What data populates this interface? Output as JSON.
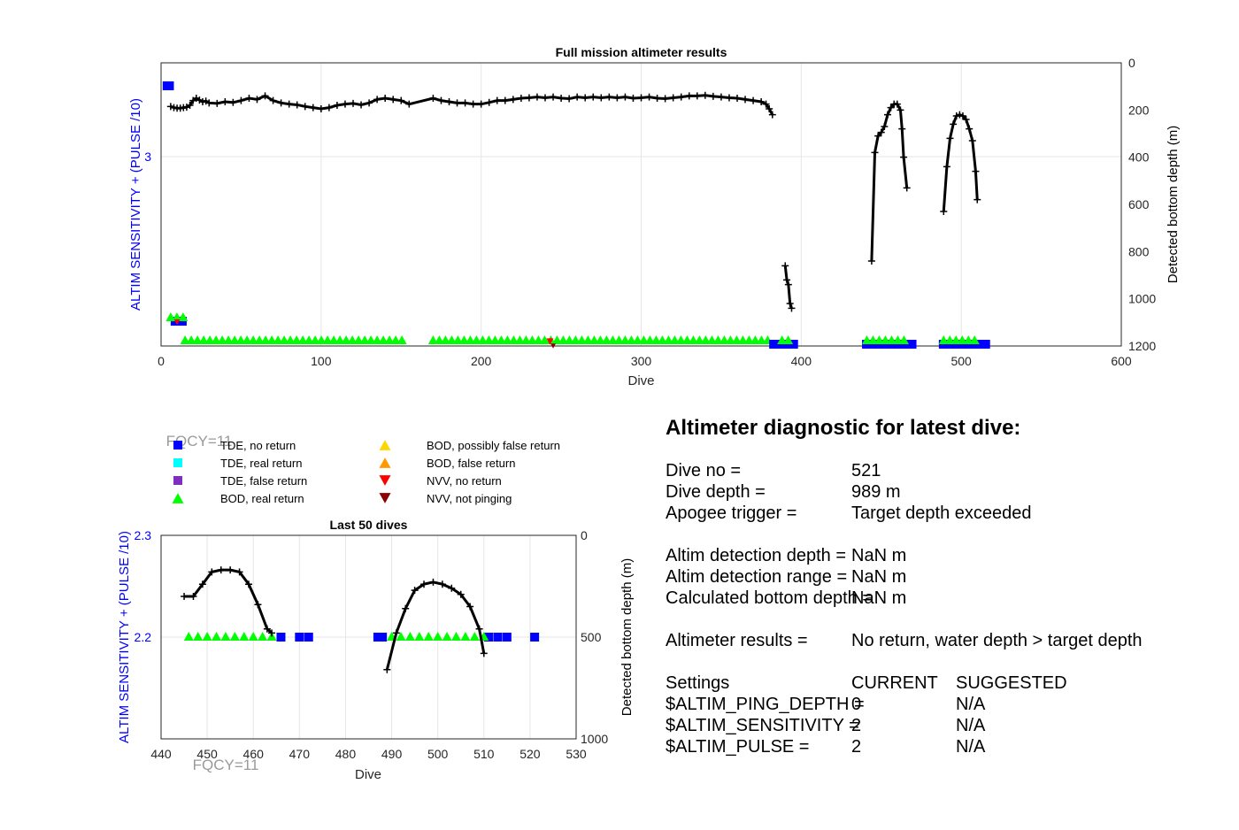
{
  "colors": {
    "tde_no_return": "#0000ff",
    "tde_real_return": "#00ffff",
    "tde_false_return": "#7e2fbe",
    "bod_real_return": "#00ff00",
    "bod_possibly_false": "#ffd700",
    "bod_false_return": "#ff9900",
    "nvv_no_return": "#ff0000",
    "nvv_not_pinging": "#8b0000",
    "depth_line": "#000000",
    "left_axis": "#0000ff",
    "grid": "#e6e6e6"
  },
  "chart_data": [
    {
      "type": "scatter",
      "title": "Full mission altimeter results",
      "xlabel": "Dive",
      "ylabel_left": "ALTIM SENSITIVITY + (PULSE /10)",
      "ylabel_right": "Detected bottom depth (m)",
      "xlim": [
        0,
        600
      ],
      "x_ticks": [
        0,
        100,
        200,
        300,
        400,
        500,
        600
      ],
      "y_left_ticks": [
        3
      ],
      "y_right_ticks": [
        0,
        200,
        400,
        600,
        800,
        1000,
        1200
      ],
      "y_right_lim": [
        0,
        1200
      ],
      "grid": true,
      "segments": [
        {
          "series": "tde_no_return",
          "start": 1,
          "end": 8,
          "level": "top"
        },
        {
          "series": "tde_no_return",
          "start": 6,
          "end": 16,
          "level": "mid"
        },
        {
          "series": "bod_real_return",
          "start": 6,
          "end": 16,
          "level": "mid"
        },
        {
          "series": "bod_real_return",
          "start": 15,
          "end": 152,
          "level": "bottom"
        },
        {
          "series": "bod_real_return",
          "start": 170,
          "end": 380,
          "level": "bottom"
        },
        {
          "series": "tde_no_return",
          "start": 380,
          "end": 398,
          "level": "bottom"
        },
        {
          "series": "bod_real_return",
          "start": 388,
          "end": 392,
          "level": "bottom"
        },
        {
          "series": "tde_no_return",
          "start": 438,
          "end": 472,
          "level": "bottom"
        },
        {
          "series": "bod_real_return",
          "start": 441,
          "end": 465,
          "level": "bottom"
        },
        {
          "series": "tde_no_return",
          "start": 486,
          "end": 518,
          "level": "bottom"
        },
        {
          "series": "bod_real_return",
          "start": 489,
          "end": 510,
          "level": "bottom"
        }
      ],
      "depth_lines": [
        {
          "x": [
            6,
            8,
            10,
            12,
            14,
            16,
            18,
            20,
            22,
            24,
            26,
            28,
            30,
            35,
            40,
            45,
            50,
            55,
            60,
            65,
            70,
            75,
            80,
            85,
            90,
            95,
            100,
            105,
            110,
            115,
            120,
            125,
            130,
            135,
            140,
            145,
            150,
            155,
            170,
            175,
            180,
            185,
            190,
            195,
            200,
            205,
            210,
            215,
            220,
            225,
            230,
            235,
            240,
            245,
            250,
            255,
            260,
            265,
            270,
            275,
            280,
            285,
            290,
            295,
            300,
            305,
            310,
            315,
            320,
            325,
            330,
            335,
            340,
            345,
            350,
            355,
            360,
            365,
            370,
            375,
            378,
            380,
            382
          ],
          "y": [
            185,
            190,
            192,
            192,
            190,
            188,
            180,
            160,
            150,
            158,
            165,
            162,
            170,
            172,
            165,
            168,
            160,
            150,
            155,
            140,
            160,
            170,
            175,
            178,
            185,
            190,
            195,
            190,
            180,
            175,
            172,
            178,
            170,
            155,
            150,
            155,
            160,
            175,
            150,
            160,
            165,
            170,
            170,
            175,
            175,
            168,
            160,
            160,
            155,
            150,
            148,
            145,
            148,
            145,
            150,
            152,
            145,
            148,
            145,
            148,
            145,
            148,
            145,
            150,
            148,
            145,
            150,
            152,
            148,
            145,
            140,
            140,
            138,
            142,
            145,
            148,
            150,
            155,
            160,
            165,
            175,
            195,
            220
          ]
        },
        {
          "x": [
            390,
            391,
            392,
            393,
            394
          ],
          "y": [
            860,
            920,
            940,
            1020,
            1040
          ]
        },
        {
          "x": [
            444,
            446,
            448,
            450,
            452,
            454,
            456,
            458,
            460,
            462,
            463,
            464,
            466
          ],
          "y": [
            840,
            380,
            310,
            295,
            270,
            220,
            190,
            175,
            175,
            200,
            280,
            400,
            530
          ]
        },
        {
          "x": [
            489,
            491,
            493,
            495,
            497,
            499,
            501,
            503,
            505,
            507,
            509,
            510
          ],
          "y": [
            630,
            440,
            320,
            260,
            225,
            220,
            225,
            240,
            280,
            330,
            460,
            580
          ]
        }
      ],
      "annotations": {
        "fqcy_label": "FQCY=11"
      }
    },
    {
      "type": "scatter",
      "title": "Last 50 dives",
      "xlabel": "Dive",
      "ylabel_left": "ALTIM SENSITIVITY + (PULSE /10)",
      "ylabel_right": "Detected bottom depth (m)",
      "xlim": [
        440,
        530
      ],
      "x_ticks": [
        440,
        450,
        460,
        470,
        480,
        490,
        500,
        510,
        520,
        530
      ],
      "y_left_lim": [
        2.1,
        2.3
      ],
      "y_left_ticks": [
        2.2,
        2.3
      ],
      "y_right_lim": [
        0,
        1000
      ],
      "y_right_ticks": [
        0,
        500,
        1000
      ],
      "grid": true,
      "bod_real_return_x": [
        446,
        448,
        450,
        452,
        454,
        456,
        458,
        460,
        462,
        464,
        490,
        492,
        494,
        496,
        498,
        500,
        502,
        504,
        506,
        508,
        510
      ],
      "bod_real_return_y": 2.2,
      "tde_no_return_x": [
        466,
        470,
        472,
        487,
        488,
        511,
        513,
        515,
        521
      ],
      "tde_no_return_y": 2.2,
      "depth_lines": [
        {
          "x": [
            445,
            447,
            449,
            451,
            453,
            455,
            457,
            459,
            461,
            463,
            464
          ],
          "y": [
            300,
            300,
            240,
            180,
            170,
            170,
            180,
            240,
            340,
            460,
            480
          ]
        },
        {
          "x": [
            489,
            491,
            493,
            495,
            497,
            499,
            501,
            503,
            505,
            507,
            509,
            510
          ],
          "y": [
            660,
            480,
            360,
            270,
            240,
            230,
            240,
            260,
            290,
            350,
            460,
            580
          ]
        }
      ],
      "annotations": {
        "fqcy_label": "FQCY=11"
      }
    }
  ],
  "legend": [
    {
      "key": "tde_no_return",
      "marker": "square",
      "label": "TDE, no return"
    },
    {
      "key": "tde_real_return",
      "marker": "square",
      "label": "TDE, real return"
    },
    {
      "key": "tde_false_return",
      "marker": "square",
      "label": "TDE, false return"
    },
    {
      "key": "bod_real_return",
      "marker": "triangle-up",
      "label": "BOD, real return"
    },
    {
      "key": "bod_possibly_false",
      "marker": "triangle-up",
      "label": "BOD, possibly false return"
    },
    {
      "key": "bod_false_return",
      "marker": "triangle-up",
      "label": "BOD, false return"
    },
    {
      "key": "nvv_no_return",
      "marker": "triangle-down",
      "label": "NVV, no return"
    },
    {
      "key": "nvv_not_pinging",
      "marker": "triangle-down",
      "label": "NVV, not pinging"
    }
  ],
  "diagnostic": {
    "title": "Altimeter diagnostic for latest dive:",
    "rows": [
      {
        "label": "Dive no =",
        "value": "521"
      },
      {
        "label": "Dive depth =",
        "value": "989 m"
      },
      {
        "label": "Apogee trigger =",
        "value": "Target depth exceeded"
      },
      {
        "label": "Altim detection depth =",
        "value": "NaN m"
      },
      {
        "label": "Altim detection range =",
        "value": "NaN m"
      },
      {
        "label": "Calculated bottom depth =",
        "value": "NaN m"
      },
      {
        "label": "Altimeter results =",
        "value": "No return, water depth > target depth"
      }
    ],
    "settings_header": {
      "label": "Settings",
      "current": "CURRENT",
      "suggested": "SUGGESTED"
    },
    "settings": [
      {
        "label": "$ALTIM_PING_DEPTH =",
        "current": "0",
        "suggested": "N/A"
      },
      {
        "label": "$ALTIM_SENSITIVITY =",
        "current": "2",
        "suggested": "N/A"
      },
      {
        "label": "$ALTIM_PULSE =",
        "current": "2",
        "suggested": "N/A"
      }
    ]
  }
}
